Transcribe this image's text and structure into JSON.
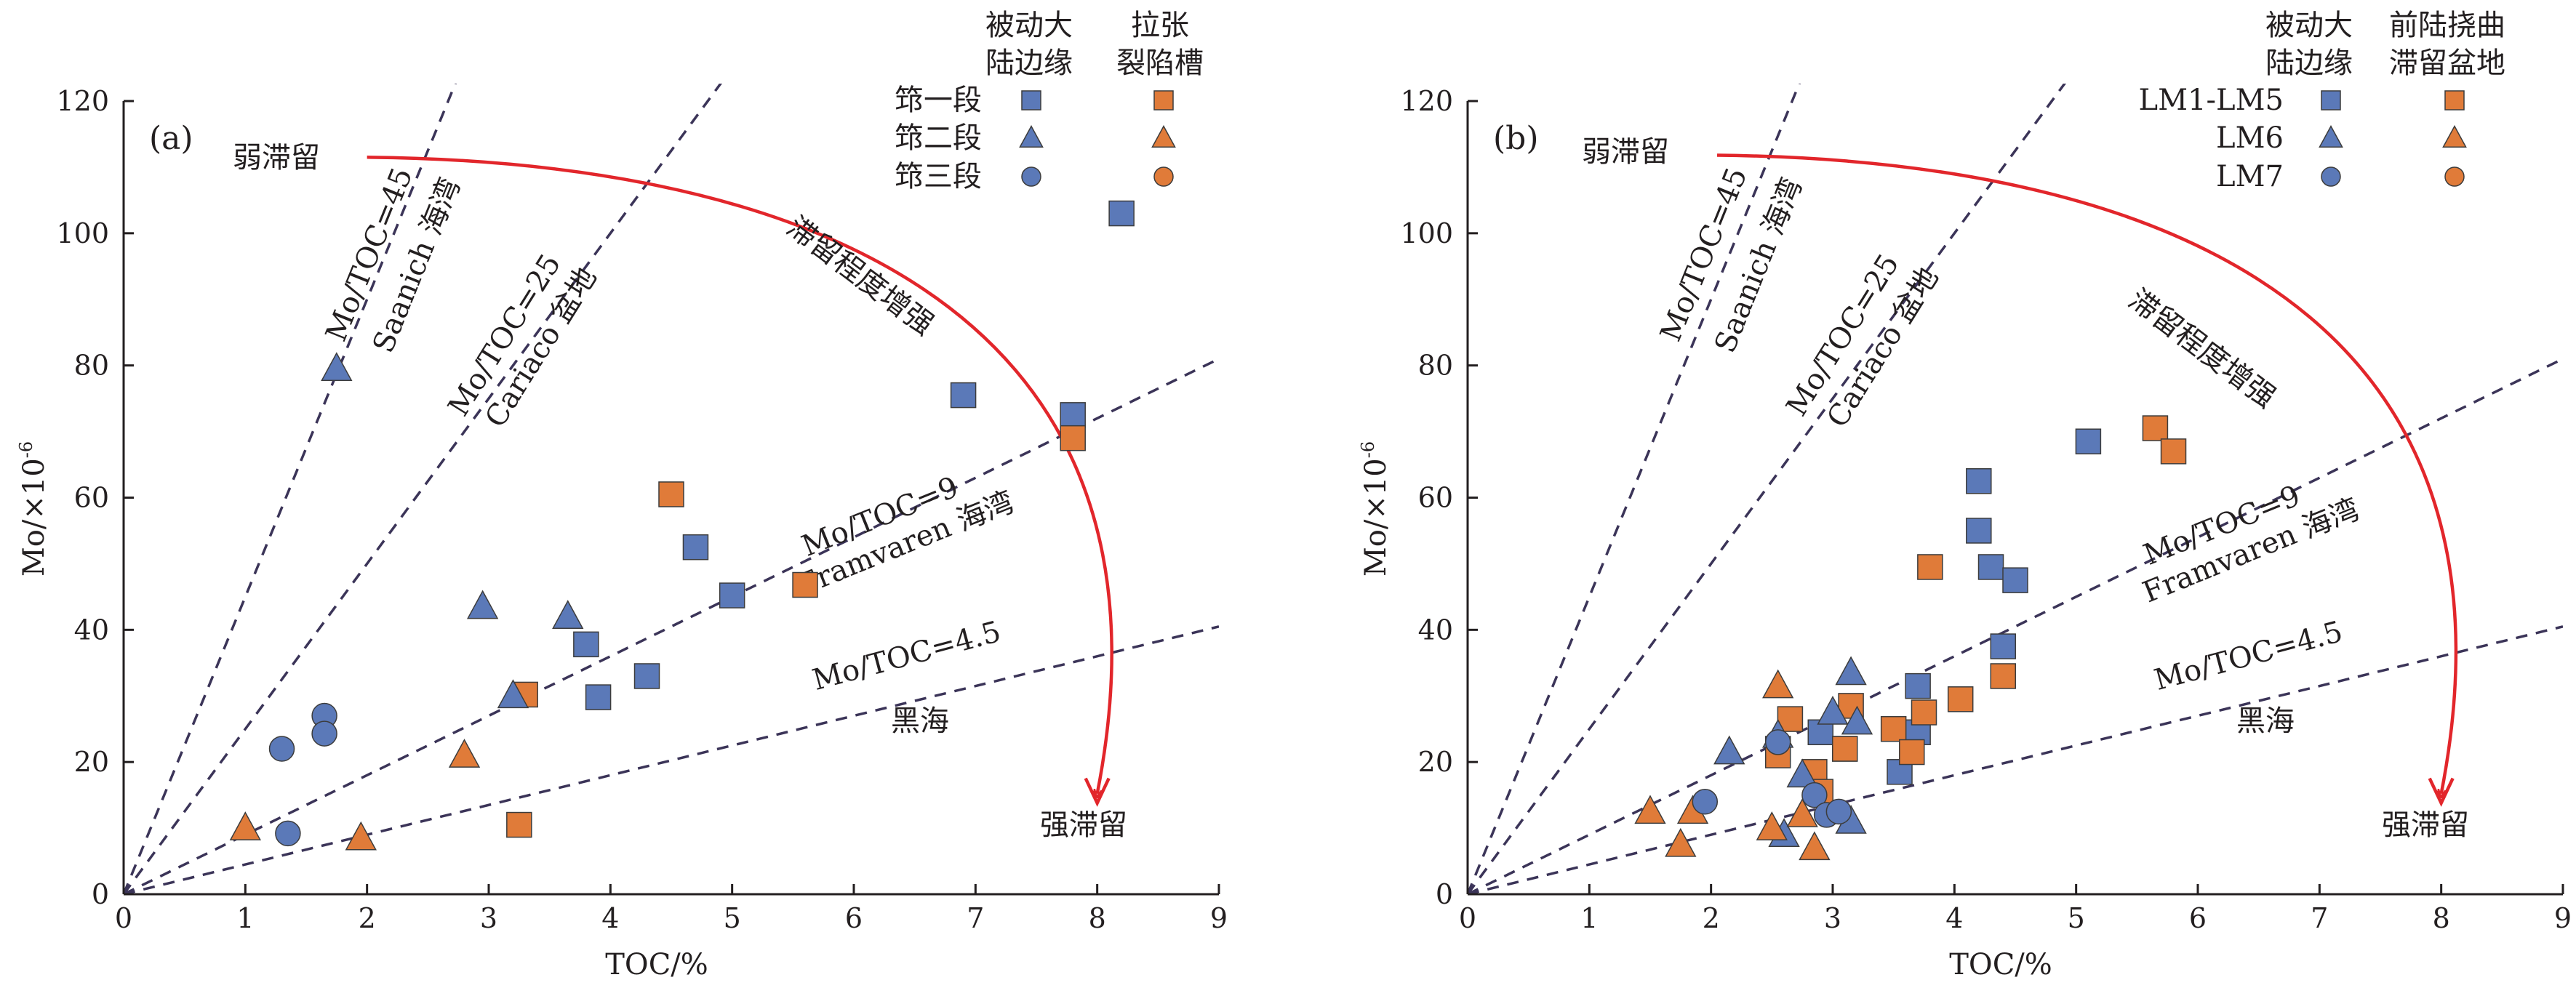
{
  "colors": {
    "blue": "#5b79b8",
    "orange": "#e07b39",
    "arrow": "#e2262b",
    "guide": "#3b3458",
    "axis": "#231f20"
  },
  "chart_data": [
    {
      "type": "scatter",
      "panel": "(a)",
      "xlabel": "TOC/%",
      "ylabel": "Mo/×10",
      "ylabel_sup": "-6",
      "xlim": [
        0,
        9
      ],
      "ylim": [
        0,
        120
      ],
      "xticks": [
        "0",
        "1",
        "2",
        "3",
        "4",
        "5",
        "6",
        "7",
        "8",
        "9"
      ],
      "yticks": [
        "0",
        "20",
        "40",
        "60",
        "80",
        "100",
        "120"
      ],
      "legend": {
        "headers": [
          [
            "被动大",
            "陆边缘"
          ],
          [
            "拉张",
            "裂陷槽"
          ]
        ],
        "rows": [
          "筇一段",
          "筇二段",
          "筇三段"
        ]
      },
      "guides": [
        {
          "slope": 45,
          "label": "Mo/TOC=45",
          "sublabel": "Saanich 海湾"
        },
        {
          "slope": 25,
          "label": "Mo/TOC=25",
          "sublabel": "Cariaco 盆地"
        },
        {
          "slope": 9,
          "label": "Mo/TOC=9",
          "sublabel": "Framvaren 海湾"
        },
        {
          "slope": 4.5,
          "label": "Mo/TOC=4.5",
          "sublabel": "黑海"
        }
      ],
      "arrow": {
        "start_label": "弱滞留",
        "end_label": "强滞留",
        "mid_label": "滞留程度增强"
      },
      "series": [
        {
          "name": "筇一段",
          "group": "被动大陆边缘",
          "marker": "square",
          "color": "blue",
          "points": [
            [
              8.2,
              103
            ],
            [
              6.9,
              75.5
            ],
            [
              7.8,
              72.5
            ],
            [
              4.7,
              52.5
            ],
            [
              5.0,
              45.2
            ],
            [
              3.8,
              37.8
            ],
            [
              4.3,
              33
            ],
            [
              3.9,
              29.8
            ]
          ]
        },
        {
          "name": "筇一段",
          "group": "拉张裂陷槽",
          "marker": "square",
          "color": "orange",
          "points": [
            [
              7.8,
              69
            ],
            [
              4.5,
              60.5
            ],
            [
              5.6,
              46.8
            ],
            [
              3.3,
              30.2
            ],
            [
              3.25,
              10.5
            ]
          ]
        },
        {
          "name": "筇二段",
          "group": "被动大陆边缘",
          "marker": "triangle",
          "color": "blue",
          "points": [
            [
              1.75,
              79.5
            ],
            [
              2.95,
              43.5
            ],
            [
              3.65,
              42
            ],
            [
              3.2,
              30
            ]
          ]
        },
        {
          "name": "筇二段",
          "group": "拉张裂陷槽",
          "marker": "triangle",
          "color": "orange",
          "points": [
            [
              2.8,
              21
            ],
            [
              1.0,
              10
            ],
            [
              1.95,
              8.5
            ]
          ]
        },
        {
          "name": "筇三段",
          "group": "被动大陆边缘",
          "marker": "circle",
          "color": "blue",
          "points": [
            [
              1.65,
              27
            ],
            [
              1.65,
              24.3
            ],
            [
              1.3,
              22
            ],
            [
              1.35,
              9.2
            ]
          ]
        },
        {
          "name": "筇三段",
          "group": "拉张裂陷槽",
          "marker": "circle",
          "color": "orange",
          "points": []
        }
      ]
    },
    {
      "type": "scatter",
      "panel": "(b)",
      "xlabel": "TOC/%",
      "ylabel": "Mo/×10",
      "ylabel_sup": "-6",
      "xlim": [
        0,
        9
      ],
      "ylim": [
        0,
        120
      ],
      "xticks": [
        "0",
        "1",
        "2",
        "3",
        "4",
        "5",
        "6",
        "7",
        "8",
        "9"
      ],
      "yticks": [
        "0",
        "20",
        "40",
        "60",
        "80",
        "100",
        "120"
      ],
      "legend": {
        "headers": [
          [
            "被动大",
            "陆边缘"
          ],
          [
            "前陆挠曲",
            "滞留盆地"
          ]
        ],
        "rows": [
          "LM1-LM5",
          "LM6",
          "LM7"
        ]
      },
      "guides": [
        {
          "slope": 45,
          "label": "Mo/TOC=45",
          "sublabel": "Saanich 海湾"
        },
        {
          "slope": 25,
          "label": "Mo/TOC=25",
          "sublabel": "Cariaco 盆地"
        },
        {
          "slope": 9,
          "label": "Mo/TOC=9",
          "sublabel": "Framvaren 海湾"
        },
        {
          "slope": 4.5,
          "label": "Mo/TOC=4.5",
          "sublabel": "黑海"
        }
      ],
      "arrow": {
        "start_label": "弱滞留",
        "end_label": "强滞留",
        "mid_label": "滞留程度增强"
      },
      "series": [
        {
          "name": "LM1-LM5",
          "group": "被动大陆边缘",
          "marker": "square",
          "color": "blue",
          "points": [
            [
              5.1,
              68.5
            ],
            [
              4.2,
              62.5
            ],
            [
              4.2,
              55
            ],
            [
              4.3,
              49.5
            ],
            [
              4.5,
              47.5
            ],
            [
              4.4,
              37.5
            ],
            [
              3.7,
              31.5
            ],
            [
              3.7,
              24.5
            ],
            [
              3.55,
              18.5
            ],
            [
              2.9,
              24.5
            ],
            [
              2.55,
              22
            ],
            [
              3.1,
              22
            ]
          ]
        },
        {
          "name": "LM1-LM5",
          "group": "前陆挠曲滞留盆地",
          "marker": "square",
          "color": "orange",
          "points": [
            [
              5.65,
              70.5
            ],
            [
              5.8,
              67
            ],
            [
              3.8,
              49.5
            ],
            [
              4.4,
              33
            ],
            [
              4.05,
              29.5
            ],
            [
              3.75,
              27.5
            ],
            [
              3.5,
              25
            ],
            [
              3.15,
              28.5
            ],
            [
              2.65,
              26.5
            ],
            [
              3.65,
              21.5
            ],
            [
              3.1,
              22
            ],
            [
              2.55,
              21
            ],
            [
              2.85,
              18.5
            ],
            [
              2.9,
              15.5
            ]
          ]
        },
        {
          "name": "LM6",
          "group": "被动大陆边缘",
          "marker": "triangle",
          "color": "blue",
          "points": [
            [
              3.15,
              33.5
            ],
            [
              3.0,
              27.5
            ],
            [
              3.2,
              26
            ],
            [
              2.15,
              21.5
            ],
            [
              2.55,
              24
            ],
            [
              2.75,
              18
            ],
            [
              2.6,
              9
            ],
            [
              3.15,
              11
            ]
          ]
        },
        {
          "name": "LM6",
          "group": "前陆挠曲滞留盆地",
          "marker": "triangle",
          "color": "orange",
          "points": [
            [
              2.55,
              31.5
            ],
            [
              1.5,
              12.5
            ],
            [
              1.85,
              12.5
            ],
            [
              1.75,
              7.5
            ],
            [
              2.5,
              10
            ],
            [
              2.85,
              7
            ],
            [
              2.75,
              12
            ]
          ]
        },
        {
          "name": "LM7",
          "group": "被动大陆边缘",
          "marker": "circle",
          "color": "blue",
          "points": [
            [
              1.95,
              14
            ],
            [
              2.55,
              23
            ],
            [
              2.85,
              15
            ],
            [
              2.95,
              12
            ],
            [
              3.05,
              12.5
            ]
          ]
        },
        {
          "name": "LM7",
          "group": "前陆挠曲滞留盆地",
          "marker": "circle",
          "color": "orange",
          "points": []
        }
      ]
    }
  ]
}
